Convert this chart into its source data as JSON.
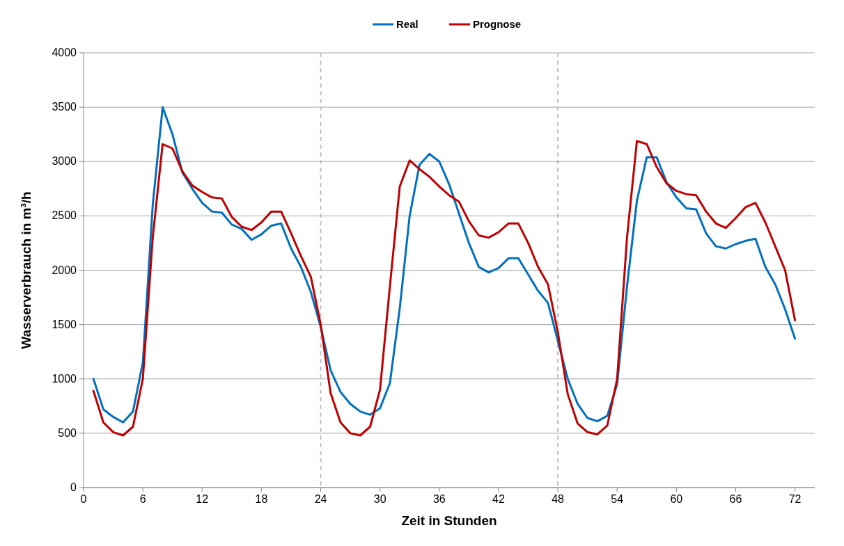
{
  "chart_data": {
    "type": "line",
    "xlabel": "Zeit in Stunden",
    "ylabel": "Wasserverbrauch in m³/h",
    "x": [
      1,
      2,
      3,
      4,
      5,
      6,
      7,
      8,
      9,
      10,
      11,
      12,
      13,
      14,
      15,
      16,
      17,
      18,
      19,
      20,
      21,
      22,
      23,
      24,
      25,
      26,
      27,
      28,
      29,
      30,
      31,
      32,
      33,
      34,
      35,
      36,
      37,
      38,
      39,
      40,
      41,
      42,
      43,
      44,
      45,
      46,
      47,
      48,
      49,
      50,
      51,
      52,
      53,
      54,
      55,
      56,
      57,
      58,
      59,
      60,
      61,
      62,
      63,
      64,
      65,
      66,
      67,
      68,
      69,
      70,
      71,
      72
    ],
    "series": [
      {
        "name": "Real",
        "color": "#0070c0",
        "values": [
          1000,
          720,
          650,
          600,
          700,
          1150,
          2600,
          3500,
          3250,
          2900,
          2750,
          2620,
          2540,
          2530,
          2420,
          2380,
          2280,
          2330,
          2410,
          2430,
          2200,
          2030,
          1800,
          1480,
          1080,
          880,
          770,
          700,
          670,
          730,
          960,
          1650,
          2500,
          2970,
          3070,
          3000,
          2790,
          2520,
          2250,
          2030,
          1980,
          2020,
          2110,
          2110,
          1960,
          1810,
          1700,
          1350,
          1000,
          770,
          640,
          610,
          660,
          950,
          1850,
          2640,
          3040,
          3040,
          2810,
          2670,
          2570,
          2560,
          2340,
          2220,
          2200,
          2240,
          2270,
          2290,
          2030,
          1870,
          1640,
          1370
        ]
      },
      {
        "name": "Prognose",
        "color": "#c00000",
        "values": [
          890,
          600,
          510,
          480,
          560,
          1000,
          2300,
          3160,
          3120,
          2910,
          2780,
          2720,
          2670,
          2660,
          2490,
          2400,
          2370,
          2440,
          2540,
          2540,
          2340,
          2130,
          1940,
          1500,
          870,
          600,
          500,
          480,
          560,
          900,
          1850,
          2770,
          3010,
          2930,
          2860,
          2770,
          2690,
          2630,
          2450,
          2320,
          2300,
          2350,
          2430,
          2430,
          2250,
          2030,
          1870,
          1430,
          860,
          590,
          510,
          490,
          570,
          1000,
          2300,
          3190,
          3160,
          2950,
          2800,
          2730,
          2700,
          2690,
          2540,
          2430,
          2390,
          2480,
          2580,
          2620,
          2440,
          2220,
          2000,
          1540
        ]
      }
    ],
    "xlim": [
      0,
      74
    ],
    "xticks": [
      0,
      6,
      12,
      18,
      24,
      30,
      36,
      42,
      48,
      54,
      60,
      66,
      72
    ],
    "ylim": [
      0,
      4000
    ],
    "yticks": [
      0,
      500,
      1000,
      1500,
      2000,
      2500,
      3000,
      3500,
      4000
    ],
    "ref_lines": [
      {
        "axis": "x",
        "value": 24,
        "color": "#bfbfbf",
        "line_style": "dashed"
      },
      {
        "axis": "x",
        "value": 48,
        "color": "#bfbfbf",
        "line_style": "dashed"
      }
    ],
    "grid": "y",
    "legend": "top",
    "marker": "none",
    "line_style": "solid"
  }
}
